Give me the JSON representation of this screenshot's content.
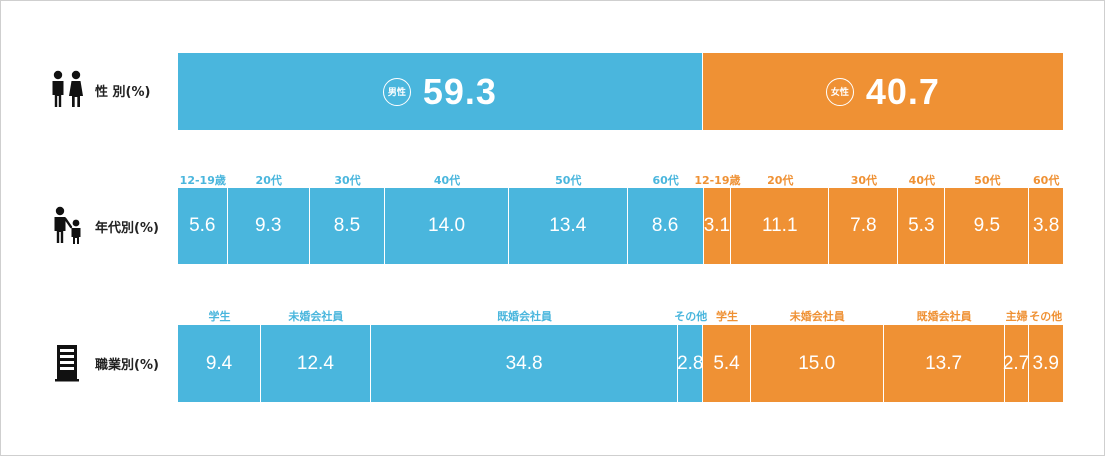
{
  "colors": {
    "male": "#4ab6dd",
    "female": "#ef9134"
  },
  "icons": {
    "gender": "man-woman-icon",
    "age": "adult-child-icon",
    "occupation": "building-icon"
  },
  "rows": {
    "gender": {
      "label": "性 別(%)"
    },
    "age": {
      "label": "年代別(%)"
    },
    "occupation": {
      "label": "職業別(%)"
    }
  },
  "chart_data": [
    {
      "type": "bar",
      "orientation": "horizontal-stacked",
      "unit": "%",
      "segments": [
        {
          "group": "male",
          "badge": "男性",
          "value": 59.3,
          "display": "59.3"
        },
        {
          "group": "female",
          "badge": "女性",
          "value": 40.7,
          "display": "40.7"
        }
      ]
    },
    {
      "type": "bar",
      "orientation": "horizontal-stacked",
      "unit": "%",
      "segments": [
        {
          "group": "male",
          "category": "12-19歳",
          "value": 5.6,
          "display": "5.6"
        },
        {
          "group": "male",
          "category": "20代",
          "value": 9.3,
          "display": "9.3"
        },
        {
          "group": "male",
          "category": "30代",
          "value": 8.5,
          "display": "8.5"
        },
        {
          "group": "male",
          "category": "40代",
          "value": 14.0,
          "display": "14.0"
        },
        {
          "group": "male",
          "category": "50代",
          "value": 13.4,
          "display": "13.4"
        },
        {
          "group": "male",
          "category": "60代",
          "value": 8.6,
          "display": "8.6"
        },
        {
          "group": "female",
          "category": "12-19歳",
          "value": 3.1,
          "display": "3.1"
        },
        {
          "group": "female",
          "category": "20代",
          "value": 11.1,
          "display": "11.1"
        },
        {
          "group": "female",
          "category": "30代",
          "value": 7.8,
          "display": "7.8"
        },
        {
          "group": "female",
          "category": "40代",
          "value": 5.3,
          "display": "5.3"
        },
        {
          "group": "female",
          "category": "50代",
          "value": 9.5,
          "display": "9.5"
        },
        {
          "group": "female",
          "category": "60代",
          "value": 3.8,
          "display": "3.8"
        }
      ]
    },
    {
      "type": "bar",
      "orientation": "horizontal-stacked",
      "unit": "%",
      "segments": [
        {
          "group": "male",
          "category": "学生",
          "value": 9.4,
          "display": "9.4"
        },
        {
          "group": "male",
          "category": "未婚会社員",
          "value": 12.4,
          "display": "12.4"
        },
        {
          "group": "male",
          "category": "既婚会社員",
          "value": 34.8,
          "display": "34.8"
        },
        {
          "group": "male",
          "category": "その他",
          "value": 2.8,
          "display": "2.8"
        },
        {
          "group": "female",
          "category": "学生",
          "value": 5.4,
          "display": "5.4"
        },
        {
          "group": "female",
          "category": "未婚会社員",
          "value": 15.0,
          "display": "15.0"
        },
        {
          "group": "female",
          "category": "既婚会社員",
          "value": 13.7,
          "display": "13.7"
        },
        {
          "group": "female",
          "category": "主婦",
          "value": 2.7,
          "display": "2.7"
        },
        {
          "group": "female",
          "category": "その他",
          "value": 3.9,
          "display": "3.9"
        }
      ]
    }
  ]
}
